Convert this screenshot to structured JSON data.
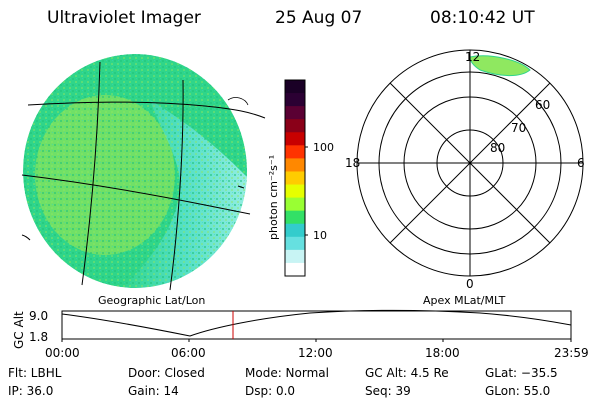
{
  "header": {
    "title": "Ultraviolet Imager",
    "date": "25 Aug 07",
    "time": "08:10:42 UT"
  },
  "colorbar": {
    "unit_label": "photon cm⁻²s⁻¹",
    "ticks": [
      "100",
      "10"
    ],
    "colors_top_to_bottom": [
      "#1a0026",
      "#2b0033",
      "#5a0033",
      "#8a0018",
      "#c80000",
      "#ff3300",
      "#ff8800",
      "#ffcc00",
      "#e6ff00",
      "#99ff33",
      "#33e066",
      "#33cccc",
      "#66e0e0",
      "#c8f4f4",
      "#ffffff"
    ]
  },
  "map": {
    "label": "Geographic Lat/Lon",
    "colors": {
      "base": "#2fd58a",
      "yellowish": "#a6ea4a",
      "cyan": "#5ee3d6"
    }
  },
  "polar": {
    "label": "Apex MLat/MLT",
    "mlt_labels": [
      "12",
      "18",
      "6",
      "0"
    ],
    "lat_labels": [
      "60",
      "70",
      "80"
    ]
  },
  "timeline": {
    "ylabel": "GC Alt",
    "y_ticks": [
      "9.0",
      "1.8"
    ],
    "x_ticks": [
      "00:00",
      "06:00",
      "12:00",
      "18:00",
      "23:59"
    ],
    "marker_color": "#cc0000"
  },
  "info": {
    "flt": "Flt: LBHL",
    "door": "Door: Closed",
    "mode": "Mode: Normal",
    "gc_alt": "GC Alt: 4.5 Re",
    "glat": "GLat: −35.5",
    "ip": "IP: 36.0",
    "gain": "Gain: 14",
    "dsp": "Dsp:      0.0",
    "seq": "Seq: 39",
    "glon": "GLon:   55.0"
  }
}
